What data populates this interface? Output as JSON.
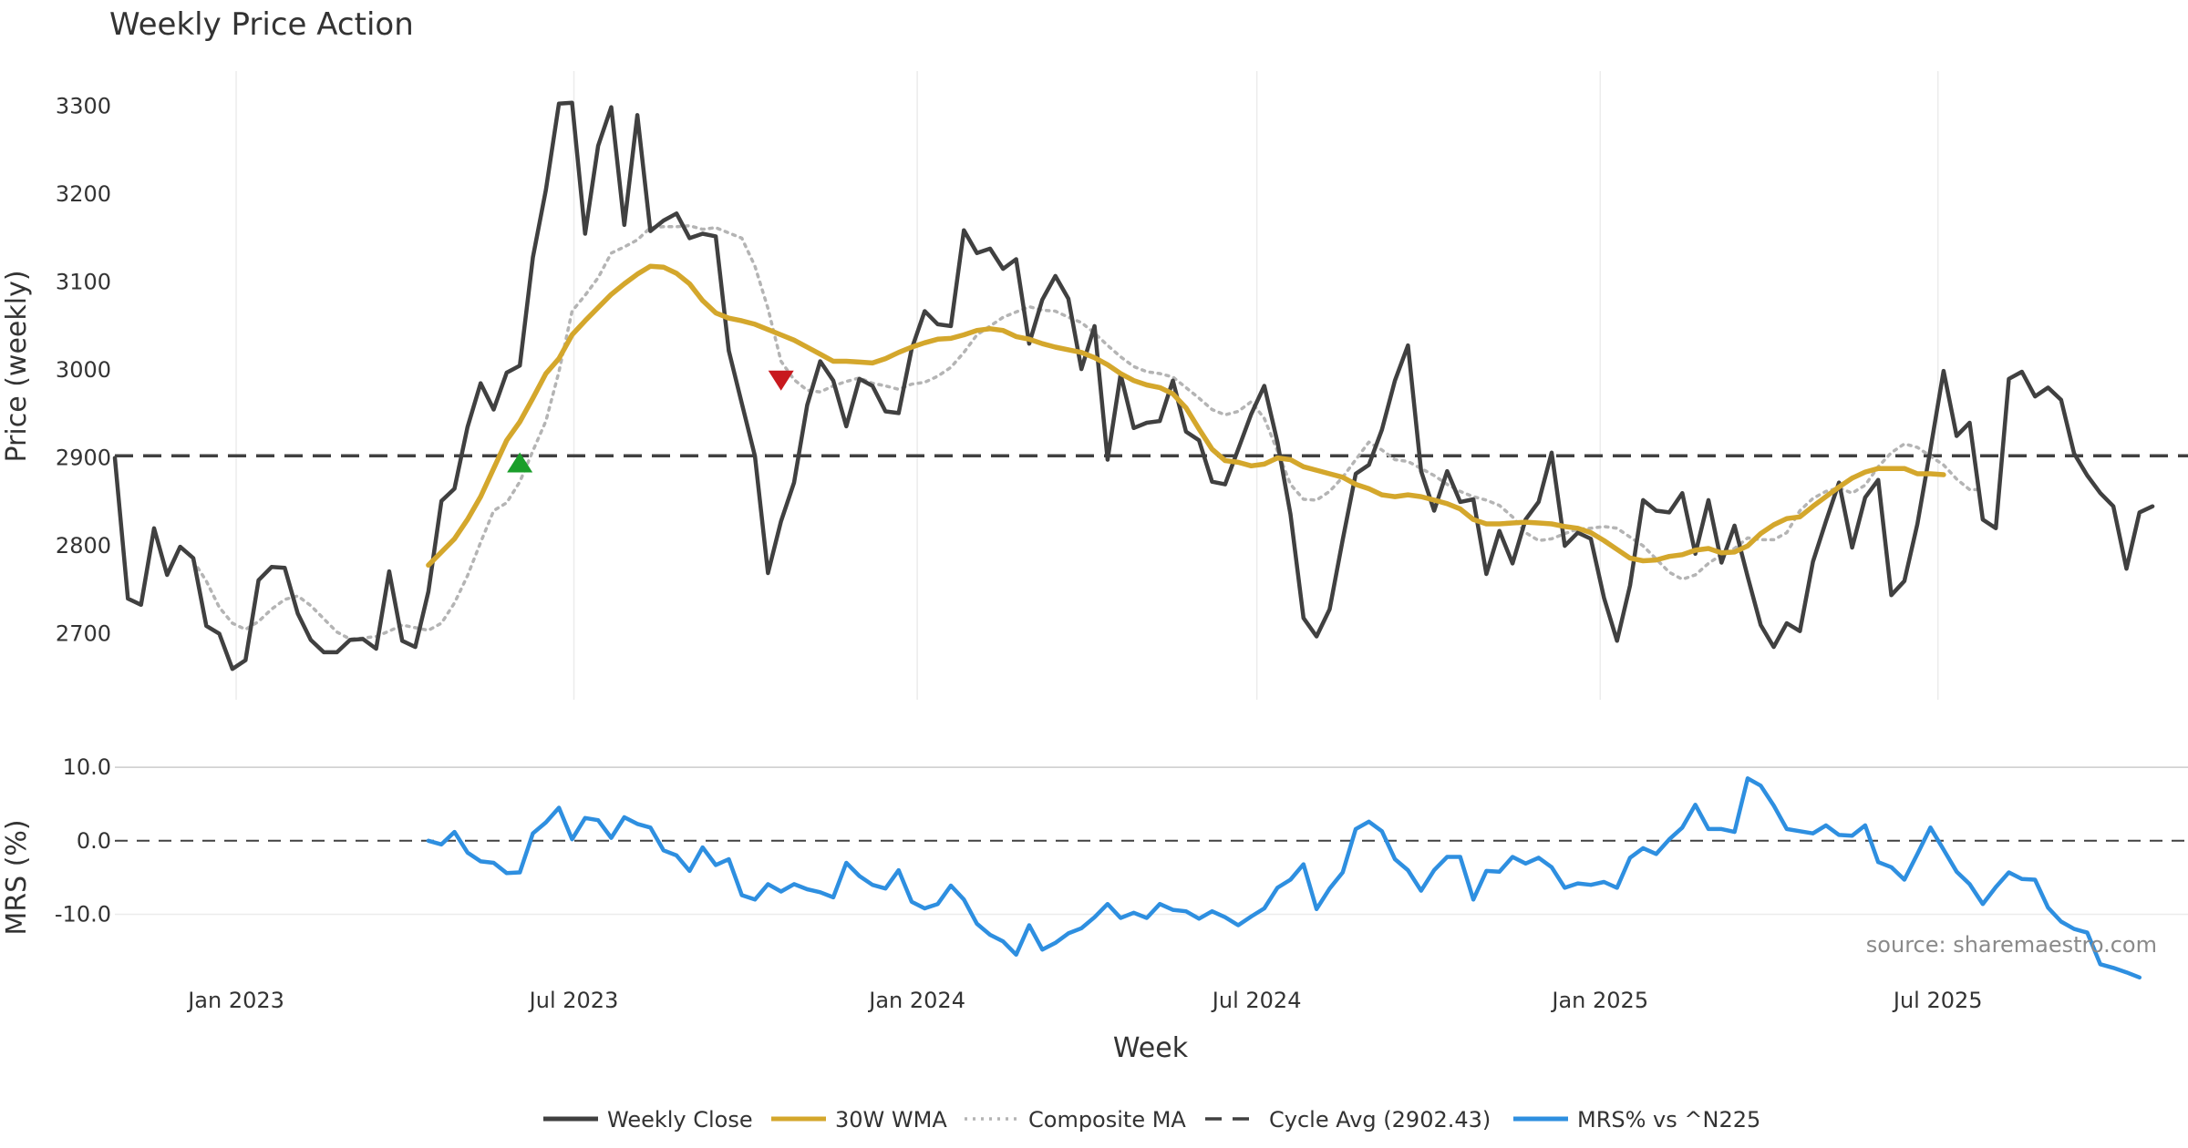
{
  "chart_data": {
    "type": "line",
    "title": "Weekly Price Action",
    "xlabel": "Week",
    "source": "source: sharemaestro.com",
    "x_range": [
      "2022-10-28",
      "2025-11-12"
    ],
    "x_ticks": [
      {
        "date": "2023-01-01",
        "label": "Jan 2023"
      },
      {
        "date": "2023-07-01",
        "label": "Jul 2023"
      },
      {
        "date": "2024-01-01",
        "label": "Jan 2024"
      },
      {
        "date": "2024-07-01",
        "label": "Jul 2024"
      },
      {
        "date": "2025-01-01",
        "label": "Jan 2025"
      },
      {
        "date": "2025-07-01",
        "label": "Jul 2025"
      }
    ],
    "price_panel": {
      "ylabel": "Price (weekly)",
      "ylim": [
        2625,
        3340
      ],
      "yticks": [
        {
          "v": 2700,
          "label": "2700"
        },
        {
          "v": 2800,
          "label": "2800"
        },
        {
          "v": 2900,
          "label": "2900"
        },
        {
          "v": 3000,
          "label": "3000"
        },
        {
          "v": 3100,
          "label": "3100"
        },
        {
          "v": 3200,
          "label": "3200"
        },
        {
          "v": 3300,
          "label": "3300"
        }
      ],
      "cycle_avg": 2902.43,
      "series": [
        {
          "name": "Weekly Close",
          "color": "#404040",
          "start": "2022-10-28",
          "step_days": 7,
          "values": [
            2900,
            2740,
            2733,
            2820,
            2767,
            2799,
            2786,
            2709,
            2700,
            2660,
            2670,
            2761,
            2776,
            2775,
            2723,
            2693,
            2679,
            2679,
            2693,
            2694,
            2683,
            2771,
            2692,
            2685,
            2748,
            2851,
            2865,
            2935,
            2985,
            2955,
            2997,
            3005,
            3128,
            3205,
            3303,
            3304,
            3155,
            3255,
            3299,
            3165,
            3290,
            3158,
            3170,
            3178,
            3150,
            3155,
            3152,
            3022,
            2962,
            2902,
            2769,
            2828,
            2872,
            2960,
            3010,
            2988,
            2936,
            2990,
            2982,
            2953,
            2951,
            3024,
            3067,
            3052,
            3050,
            3159,
            3133,
            3138,
            3115,
            3126,
            3030,
            3080,
            3107,
            3081,
            3001,
            3050,
            2898,
            2995,
            2934,
            2940,
            2942,
            2988,
            2930,
            2920,
            2873,
            2870,
            2910,
            2950,
            2982,
            2918,
            2836,
            2718,
            2697,
            2728,
            2807,
            2882,
            2892,
            2932,
            2988,
            3028,
            2885,
            2840,
            2885,
            2850,
            2853,
            2768,
            2817,
            2780,
            2830,
            2850,
            2906,
            2800,
            2815,
            2808,
            2741,
            2692,
            2755,
            2852,
            2840,
            2838,
            2860,
            2791,
            2852,
            2781,
            2823,
            2765,
            2710,
            2685,
            2712,
            2703,
            2782,
            2828,
            2872,
            2798,
            2855,
            2875,
            2744,
            2760,
            2825,
            2910,
            2999,
            2925,
            2940,
            2830,
            2820,
            2990,
            2998,
            2970,
            2980,
            2966,
            2905,
            2880,
            2860,
            2845,
            2774,
            2838,
            2845
          ]
        },
        {
          "name": "30W WMA",
          "color": "#d4a72c",
          "start": "2023-04-14",
          "step_days": 7,
          "values": [
            2778,
            2793,
            2808,
            2830,
            2856,
            2888,
            2920,
            2941,
            2968,
            2996,
            3013,
            3040,
            3056,
            3071,
            3086,
            3098,
            3109,
            3118,
            3117,
            3110,
            3098,
            3079,
            3065,
            3059,
            3056,
            3052,
            3046,
            3040,
            3034,
            3026,
            3018,
            3010,
            3010,
            3009,
            3008,
            3013,
            3020,
            3026,
            3031,
            3035,
            3036,
            3040,
            3045,
            3047,
            3045,
            3038,
            3035,
            3030,
            3026,
            3023,
            3020,
            3014,
            3006,
            2996,
            2988,
            2983,
            2980,
            2973,
            2957,
            2933,
            2910,
            2897,
            2895,
            2891,
            2893,
            2900,
            2898,
            2890,
            2886,
            2882,
            2878,
            2870,
            2865,
            2858,
            2856,
            2858,
            2856,
            2852,
            2848,
            2842,
            2830,
            2825,
            2825,
            2826,
            2827,
            2826,
            2825,
            2822,
            2820,
            2815,
            2806,
            2796,
            2786,
            2783,
            2784,
            2788,
            2790,
            2795,
            2797,
            2792,
            2793,
            2800,
            2814,
            2824,
            2831,
            2833,
            2845,
            2856,
            2867,
            2877,
            2884,
            2888,
            2888,
            2888,
            2882,
            2882,
            2881
          ]
        },
        {
          "name": "Composite MA",
          "color": "#b4b4b4",
          "dotted": true,
          "start": "2022-12-09",
          "step_days": 7,
          "values": [
            2783,
            2760,
            2730,
            2712,
            2705,
            2714,
            2728,
            2739,
            2743,
            2732,
            2717,
            2702,
            2694,
            2695,
            2697,
            2703,
            2710,
            2707,
            2704,
            2712,
            2735,
            2766,
            2804,
            2840,
            2849,
            2873,
            2908,
            2942,
            2998,
            3067,
            3085,
            3105,
            3133,
            3140,
            3148,
            3162,
            3163,
            3163,
            3164,
            3160,
            3162,
            3156,
            3150,
            3118,
            3070,
            3010,
            2989,
            2977,
            2975,
            2982,
            2987,
            2991,
            2985,
            2982,
            2978,
            2984,
            2986,
            2993,
            3003,
            3020,
            3040,
            3050,
            3060,
            3066,
            3072,
            3068,
            3067,
            3060,
            3054,
            3042,
            3028,
            3015,
            3004,
            2998,
            2996,
            2992,
            2980,
            2968,
            2955,
            2949,
            2953,
            2964,
            2945,
            2908,
            2870,
            2853,
            2852,
            2862,
            2878,
            2898,
            2918,
            2909,
            2898,
            2896,
            2888,
            2880,
            2870,
            2862,
            2856,
            2852,
            2846,
            2833,
            2815,
            2806,
            2808,
            2814,
            2819,
            2820,
            2822,
            2820,
            2810,
            2800,
            2785,
            2770,
            2762,
            2767,
            2780,
            2790,
            2797,
            2809,
            2807,
            2807,
            2815,
            2840,
            2854,
            2862,
            2866,
            2860,
            2869,
            2890,
            2906,
            2916,
            2912,
            2902,
            2892,
            2876,
            2864,
            2864
          ]
        }
      ],
      "markers": [
        {
          "name": "buy",
          "date": "2023-06-02",
          "value": 2895,
          "shape": "triangle-up",
          "color": "#1a9e2a"
        },
        {
          "name": "sell",
          "date": "2023-10-20",
          "value": 2988,
          "shape": "triangle-down",
          "color": "#c8191e"
        }
      ]
    },
    "mrs_panel": {
      "ylabel": "MRS (%)",
      "ylim": [
        -18.5,
        12.5
      ],
      "yticks": [
        {
          "v": 10,
          "label": "10.0"
        },
        {
          "v": 0,
          "label": "0.0"
        },
        {
          "v": -10,
          "label": "-10.0"
        }
      ],
      "series": [
        {
          "name": "MRS% vs ^N225",
          "color": "#2e8fe0",
          "start": "2023-04-14",
          "step_days": 7,
          "values": [
            0.0,
            -0.5,
            1.2,
            -1.6,
            -2.8,
            -3.0,
            -4.4,
            -4.3,
            1.0,
            2.5,
            4.5,
            0.2,
            3.1,
            2.8,
            0.4,
            3.2,
            2.3,
            1.8,
            -1.3,
            -2.0,
            -4.1,
            -0.9,
            -3.3,
            -2.5,
            -7.4,
            -8.0,
            -5.9,
            -6.9,
            -5.9,
            -6.6,
            -7.0,
            -7.7,
            -3.0,
            -4.8,
            -6.0,
            -6.5,
            -4.0,
            -8.3,
            -9.2,
            -8.6,
            -6.1,
            -8.0,
            -11.3,
            -12.8,
            -13.7,
            -15.5,
            -11.5,
            -14.8,
            -13.9,
            -12.6,
            -11.9,
            -10.4,
            -8.6,
            -10.5,
            -9.8,
            -10.5,
            -8.6,
            -9.4,
            -9.6,
            -10.6,
            -9.6,
            -10.4,
            -11.5,
            -10.3,
            -9.2,
            -6.4,
            -5.3,
            -3.2,
            -9.3,
            -6.5,
            -4.3,
            1.6,
            2.6,
            1.3,
            -2.5,
            -4.0,
            -6.8,
            -4.0,
            -2.2,
            -2.2,
            -8.0,
            -4.1,
            -4.2,
            -2.2,
            -3.1,
            -2.3,
            -3.6,
            -6.4,
            -5.8,
            -6.0,
            -5.6,
            -6.4,
            -2.3,
            -1.0,
            -1.8,
            0.2,
            1.8,
            4.9,
            1.6,
            1.6,
            1.2,
            8.5,
            7.5,
            4.8,
            1.6,
            1.3,
            1.0,
            2.1,
            0.8,
            0.7,
            2.1,
            -2.9,
            -3.6,
            -5.3,
            -1.8,
            1.8,
            -1.2,
            -4.2,
            -5.9,
            -8.6,
            -6.3,
            -4.3,
            -5.2,
            -5.3,
            -9.1,
            -11.0,
            -12.0,
            -12.5,
            -16.8,
            -17.3,
            -17.9,
            -18.6
          ]
        }
      ]
    },
    "legend": [
      {
        "label": "Weekly Close",
        "color": "#404040",
        "style": "solid"
      },
      {
        "label": "30W WMA",
        "color": "#d4a72c",
        "style": "solid"
      },
      {
        "label": "Composite MA",
        "color": "#b4b4b4",
        "style": "dotted"
      },
      {
        "label": "Cycle Avg (2902.43)",
        "color": "#404040",
        "style": "dashed"
      },
      {
        "label": "MRS% vs ^N225",
        "color": "#2e8fe0",
        "style": "solid"
      }
    ]
  }
}
